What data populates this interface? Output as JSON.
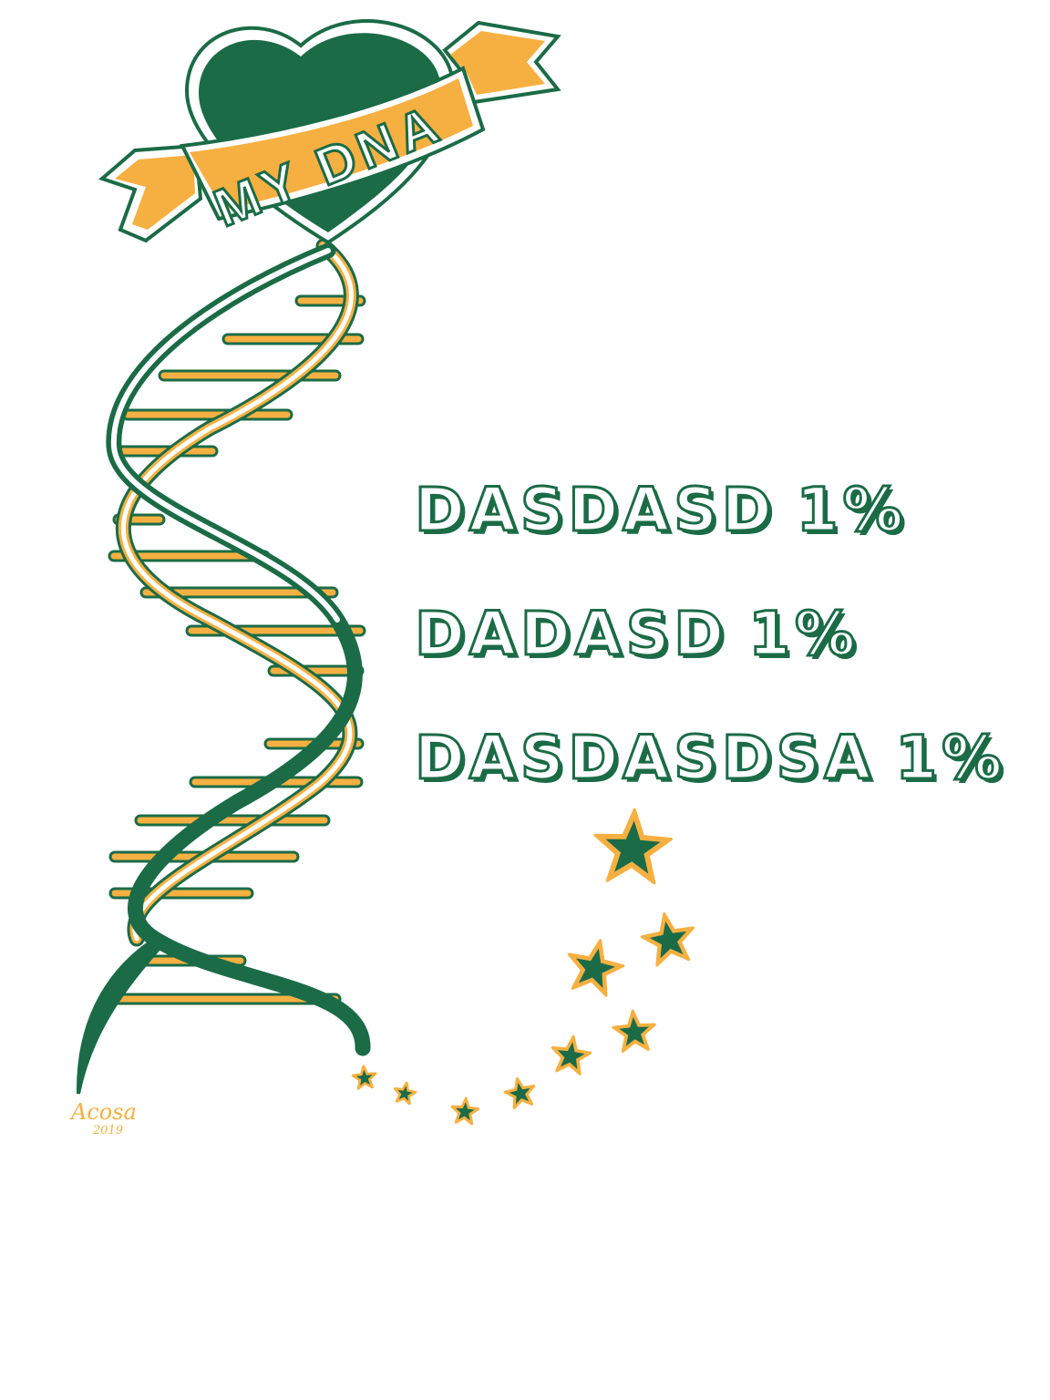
{
  "banner": {
    "text": "MY DNA"
  },
  "ancestry": [
    {
      "name": "DASDASD",
      "percent": "1%"
    },
    {
      "name": "DADASD",
      "percent": "1%"
    },
    {
      "name": "DASDASDSA",
      "percent": "1%"
    }
  ],
  "signature": {
    "name": "Acosa",
    "year": "2019"
  },
  "colors": {
    "green": "#1b6b47",
    "gold": "#f6b041",
    "white": "#ffffff"
  }
}
